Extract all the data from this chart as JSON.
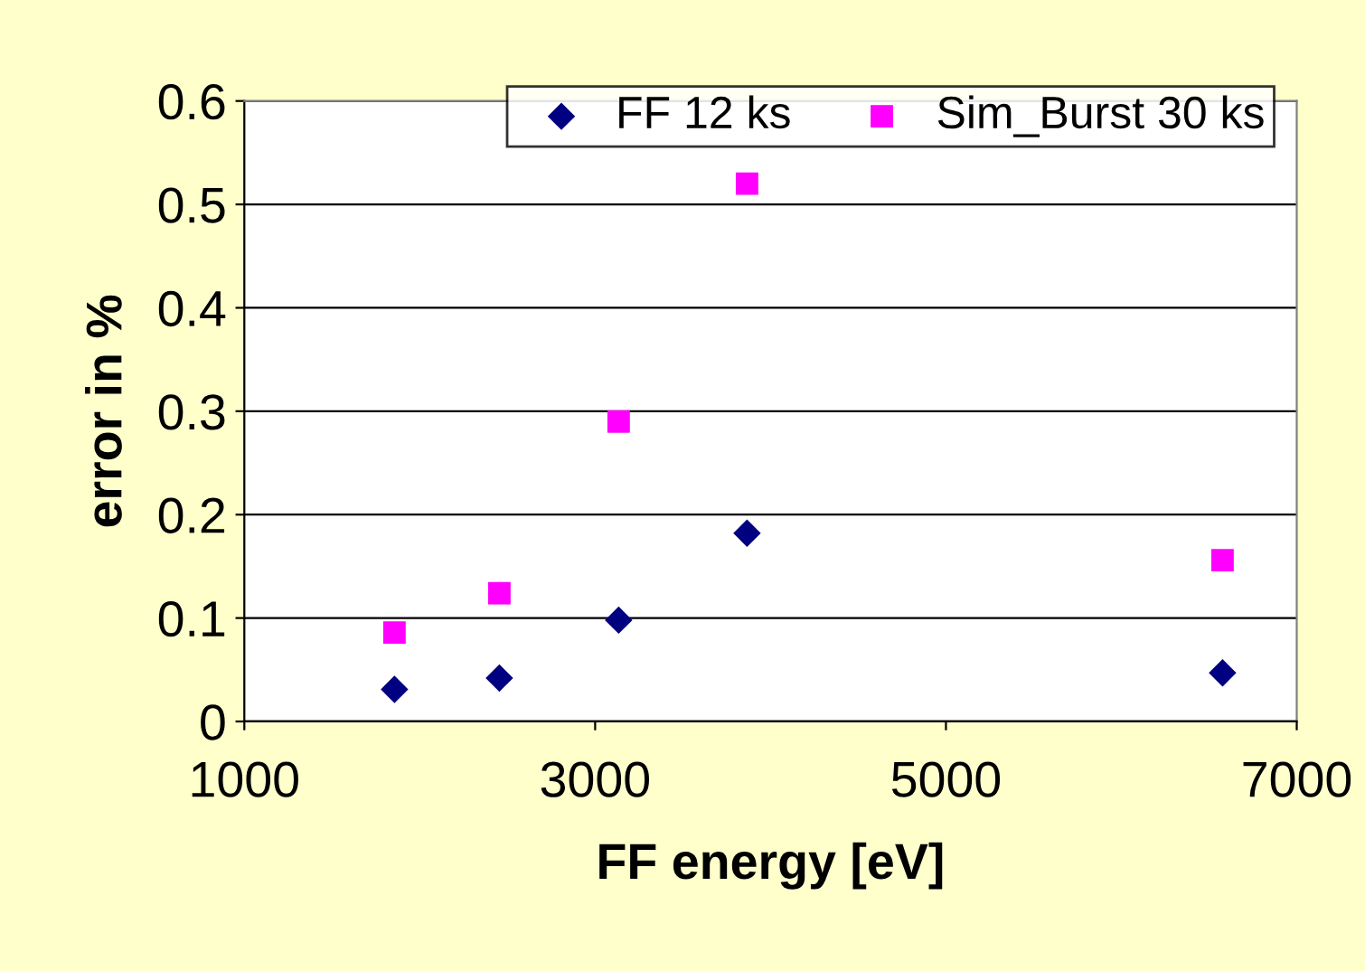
{
  "chart_data": {
    "type": "scatter",
    "xlabel": "FF energy [eV]",
    "ylabel": "error in %",
    "x": [
      1856,
      2454,
      3134,
      3866,
      6577
    ],
    "series": [
      {
        "name": "FF 12 ks",
        "color": "#000080",
        "marker": "diamond",
        "values": [
          0.031,
          0.042,
          0.098,
          0.182,
          0.047
        ]
      },
      {
        "name": "Sim_Burst 30 ks",
        "color": "#ff00ff",
        "marker": "square",
        "values": [
          0.086,
          0.124,
          0.29,
          0.52,
          0.156
        ]
      }
    ],
    "xlim": [
      1000,
      7000
    ],
    "xticks": [
      1000,
      3000,
      5000,
      7000
    ],
    "ylim": [
      0,
      0.6
    ],
    "yticks": [
      0,
      0.1,
      0.2,
      0.3,
      0.4,
      0.5,
      0.6
    ],
    "grid": "y",
    "legend": "top right"
  }
}
